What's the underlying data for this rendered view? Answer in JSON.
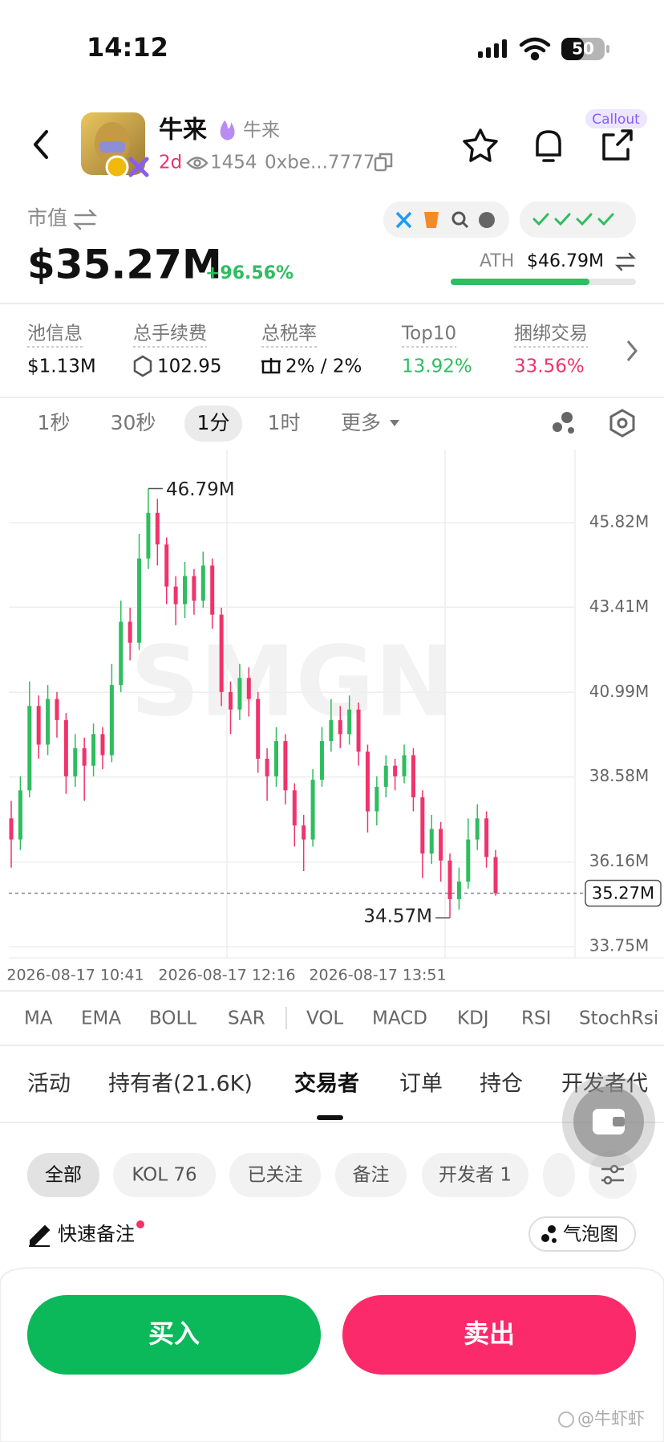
{
  "status_bar": {
    "time": "14:12",
    "battery": 50
  },
  "header": {
    "title": "牛来",
    "subtitle": "牛来",
    "age": "2d",
    "views": 1454,
    "address": "0xbe...7777",
    "callout": "Callout"
  },
  "market_cap": {
    "label": "市值",
    "value": "$35.27M",
    "change": "+96.56%",
    "ath_label": "ATH",
    "ath_value": "$46.79M"
  },
  "stats": [
    {
      "label": "池信息",
      "value": "$1.13M"
    },
    {
      "label": "总手续费",
      "value": "102.95"
    },
    {
      "label": "总税率",
      "value": "2% / 2%"
    },
    {
      "label": "Top10",
      "value": "13.92%"
    },
    {
      "label": "捆绑交易",
      "value": "33.56%"
    }
  ],
  "intervals": [
    "1秒",
    "30秒",
    "1分",
    "1时",
    "更多"
  ],
  "watermark_logo": "SMGN",
  "chart_data": {
    "type": "candlestick",
    "up_color": "#2ebd5f",
    "down_color": "#f0336b",
    "open": [
      37.4,
      36.8,
      38.2,
      40.6,
      39.5,
      40.8,
      40.2,
      38.6,
      39.4,
      38.9,
      39.8,
      39.2,
      41.2,
      43.0,
      42.4,
      44.8,
      46.1,
      45.2,
      44.0,
      43.5,
      44.3,
      43.6,
      44.6,
      43.2,
      41.0,
      40.5,
      41.4,
      40.8,
      39.1,
      38.6,
      39.6,
      38.2,
      37.2,
      36.8,
      38.5,
      39.6,
      40.2,
      39.8,
      40.5,
      39.3,
      37.6,
      38.3,
      38.9,
      38.6,
      39.2,
      38.0,
      36.4,
      37.1,
      36.2,
      35.1,
      35.6,
      36.8,
      37.4,
      36.3
    ],
    "high": [
      37.9,
      38.6,
      41.3,
      40.9,
      41.2,
      41.0,
      40.4,
      39.8,
      39.7,
      40.1,
      40.0,
      41.8,
      43.6,
      43.4,
      45.5,
      46.79,
      46.5,
      45.4,
      44.3,
      44.7,
      44.5,
      45.0,
      44.8,
      43.4,
      41.3,
      41.8,
      41.7,
      41.0,
      39.4,
      40.0,
      39.8,
      38.4,
      37.5,
      38.8,
      40.0,
      40.8,
      40.6,
      40.9,
      40.7,
      39.5,
      38.6,
      39.2,
      39.1,
      39.5,
      39.4,
      38.2,
      37.5,
      37.3,
      36.4,
      36.0,
      37.4,
      37.8,
      37.6,
      36.5
    ],
    "low": [
      36.0,
      36.5,
      38.0,
      39.1,
      39.2,
      39.7,
      38.1,
      38.3,
      37.9,
      38.6,
      38.8,
      39.0,
      41.0,
      41.9,
      42.2,
      44.5,
      44.6,
      43.5,
      42.9,
      43.1,
      43.2,
      43.4,
      42.8,
      40.6,
      39.8,
      40.2,
      40.3,
      38.7,
      37.9,
      38.3,
      37.8,
      36.6,
      35.9,
      36.6,
      38.3,
      39.3,
      39.4,
      39.5,
      38.9,
      37.0,
      37.2,
      38.0,
      38.2,
      38.4,
      37.6,
      35.7,
      36.1,
      35.6,
      34.57,
      34.8,
      35.4,
      36.5,
      36.0,
      35.2
    ],
    "close": [
      36.8,
      38.2,
      40.6,
      39.5,
      40.8,
      40.2,
      38.6,
      39.4,
      38.9,
      39.8,
      39.2,
      41.2,
      43.0,
      42.4,
      44.8,
      46.1,
      45.2,
      44.0,
      43.5,
      44.3,
      43.6,
      44.6,
      43.2,
      41.0,
      40.5,
      41.4,
      40.8,
      39.1,
      38.6,
      39.6,
      38.2,
      37.2,
      36.8,
      38.5,
      39.6,
      40.2,
      39.8,
      40.5,
      39.3,
      37.6,
      38.3,
      38.9,
      38.6,
      39.2,
      38.0,
      36.4,
      37.1,
      36.2,
      35.1,
      35.6,
      36.8,
      37.4,
      36.3,
      35.27
    ],
    "ylim": [
      33.43,
      47.9
    ],
    "yticks": [
      {
        "value": 33.75,
        "label": "33.75M"
      },
      {
        "value": 36.16,
        "label": "36.16M"
      },
      {
        "value": 38.58,
        "label": "38.58M"
      },
      {
        "value": 40.99,
        "label": "40.99M"
      },
      {
        "value": 43.41,
        "label": "43.41M"
      },
      {
        "value": 45.82,
        "label": "45.82M"
      }
    ],
    "xticks": [
      "2026-08-17 10:41",
      "2026-08-17 12:16",
      "2026-08-17 13:51"
    ],
    "annotations": [
      {
        "value": 46.79,
        "label": "46.79M"
      },
      {
        "value": 34.57,
        "label": "34.57M"
      }
    ],
    "last_value": {
      "value": 35.27,
      "label": "35.27M"
    },
    "grid": true
  },
  "indicators": [
    "MA",
    "EMA",
    "BOLL",
    "SAR",
    "VOL",
    "MACD",
    "KDJ",
    "RSI",
    "StochRsi"
  ],
  "tabs": [
    "活动",
    "持有者(21.6K)",
    "交易者",
    "订单",
    "持仓",
    "开发者代"
  ],
  "filters": [
    "全部",
    "KOL 76",
    "已关注",
    "备注",
    "开发者 1"
  ],
  "quick_note": "快速备注",
  "bubble_map": "气泡图",
  "buttons": {
    "buy": "买入",
    "sell": "卖出"
  },
  "watermark": "@牛虾虾"
}
